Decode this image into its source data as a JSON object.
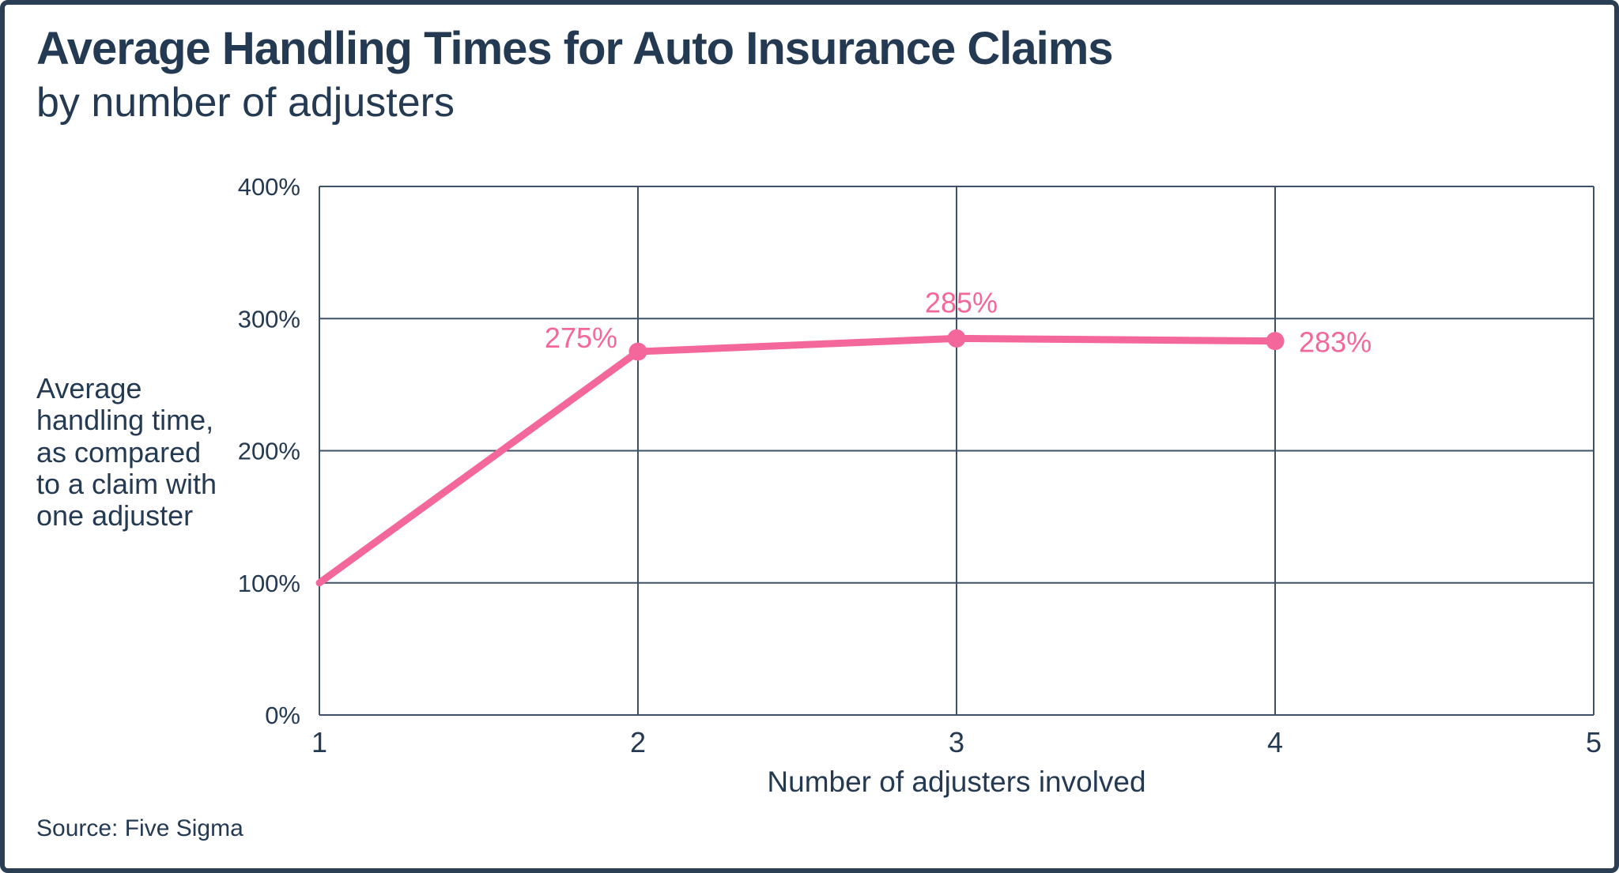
{
  "header": {
    "title": "Average Handling Times for Auto Insurance Claims",
    "subtitle": "by number of adjusters"
  },
  "labels": {
    "y_axis_multiline": "Average\nhandling time,\nas compared\nto a claim with\none adjuster"
  },
  "source": "Source: Five Sigma",
  "colors": {
    "navy_text": "#243A52",
    "grid": "#3E5166",
    "pink": "#F4679B",
    "frame_border": "#2B3F54",
    "background": "#FFFFFF"
  },
  "chart_data": {
    "type": "line",
    "title": "Average Handling Times for Auto Insurance Claims",
    "subtitle": "by number of adjusters",
    "xlabel": "Number of adjusters involved",
    "ylabel": "Average handling time, as compared to a claim with one adjuster",
    "source": "Source: Five Sigma",
    "x": [
      1,
      2,
      3,
      4
    ],
    "values": [
      100,
      275,
      285,
      283
    ],
    "xlim": [
      1,
      5
    ],
    "ylim": [
      0,
      400
    ],
    "grid": true,
    "legend_position": "none",
    "x_ticks": [
      {
        "v": 1,
        "label": "1"
      },
      {
        "v": 2,
        "label": "2"
      },
      {
        "v": 3,
        "label": "3"
      },
      {
        "v": 4,
        "label": "4"
      },
      {
        "v": 5,
        "label": "5"
      }
    ],
    "y_ticks": [
      {
        "v": 0,
        "label": "0%"
      },
      {
        "v": 100,
        "label": "100%"
      },
      {
        "v": 200,
        "label": "200%"
      },
      {
        "v": 300,
        "label": "300%"
      },
      {
        "v": 400,
        "label": "400%"
      }
    ],
    "points": [
      {
        "x": 1,
        "y": 100,
        "marker": false,
        "label": null,
        "label_pos": null
      },
      {
        "x": 2,
        "y": 275,
        "marker": true,
        "label": "275%",
        "label_pos": "left"
      },
      {
        "x": 3,
        "y": 285,
        "marker": true,
        "label": "285%",
        "label_pos": "above"
      },
      {
        "x": 4,
        "y": 283,
        "marker": true,
        "label": "283%",
        "label_pos": "right"
      }
    ],
    "line_color": "#F4679B",
    "grid_color": "#3E5166",
    "text_color": "#243A52"
  }
}
